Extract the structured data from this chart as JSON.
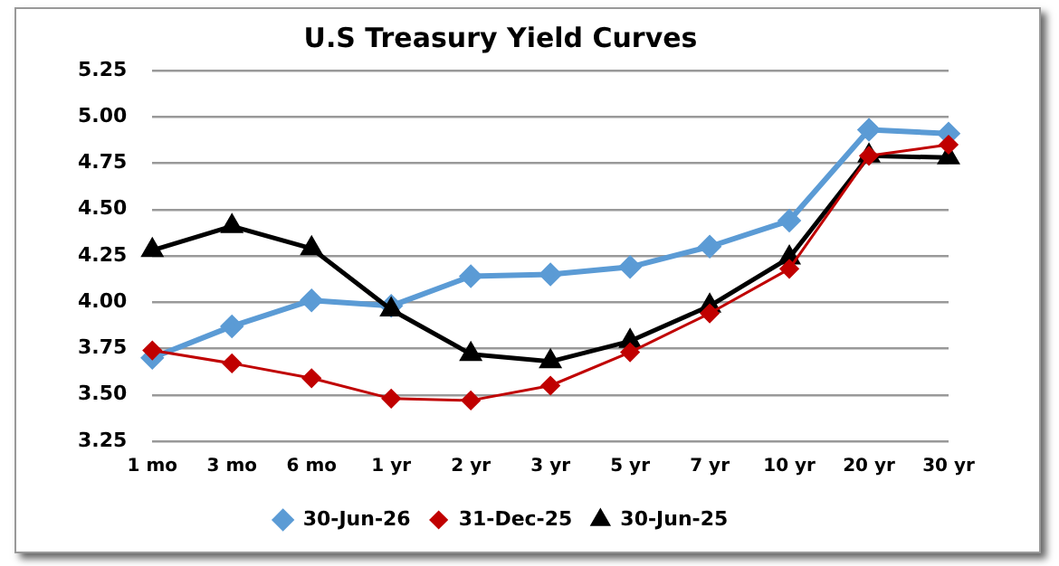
{
  "chart_data": {
    "type": "line",
    "title": "U.S Treasury Yield Curves",
    "categories": [
      "1 mo",
      "3 mo",
      "6 mo",
      "1 yr",
      "2 yr",
      "3 yr",
      "5 yr",
      "7 yr",
      "10 yr",
      "20 yr",
      "30 yr"
    ],
    "series": [
      {
        "name": "30-Jun-26",
        "color": "#5b9bd5",
        "marker": "diamond",
        "values": [
          3.7,
          3.87,
          4.01,
          3.98,
          4.14,
          4.15,
          4.19,
          4.3,
          4.44,
          4.93,
          4.91
        ]
      },
      {
        "name": "31-Dec-25",
        "color": "#c00000",
        "marker": "diamond",
        "values": [
          3.74,
          3.67,
          3.59,
          3.48,
          3.47,
          3.55,
          3.73,
          3.94,
          4.18,
          4.79,
          4.85
        ]
      },
      {
        "name": "30-Jun-25",
        "color": "#000000",
        "marker": "triangle",
        "values": [
          4.28,
          4.41,
          4.29,
          3.96,
          3.72,
          3.68,
          3.79,
          3.98,
          4.24,
          4.79,
          4.78
        ]
      }
    ],
    "ylim": [
      3.25,
      5.25
    ],
    "yticks": [
      {
        "value": 3.25,
        "label": "3.25"
      },
      {
        "value": 3.5,
        "label": "3.50"
      },
      {
        "value": 3.75,
        "label": "3.75"
      },
      {
        "value": 4,
        "label": "4.00"
      },
      {
        "value": 4.25,
        "label": "4.25"
      },
      {
        "value": 4.5,
        "label": "4.50"
      },
      {
        "value": 4.75,
        "label": "4.75"
      },
      {
        "value": 5,
        "label": "5.00"
      },
      {
        "value": 5.25,
        "label": "5.25"
      }
    ],
    "grid": "y",
    "legend": "bottom",
    "line_style": "solid"
  }
}
